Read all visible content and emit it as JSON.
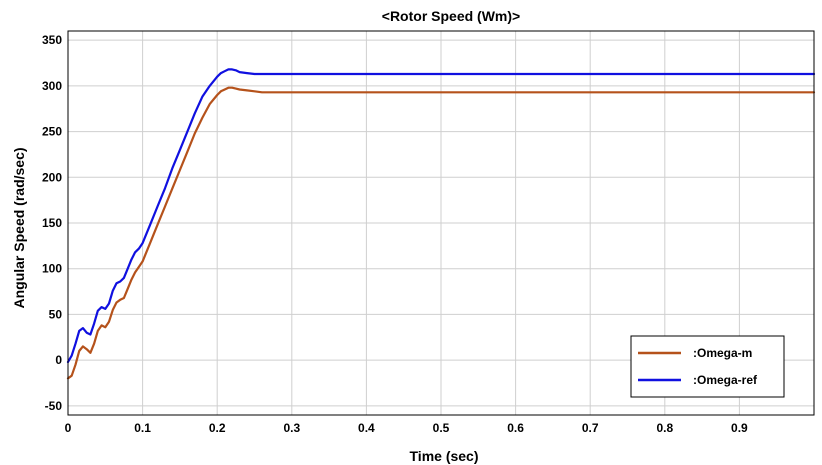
{
  "chart_data": {
    "type": "line",
    "title": "<Rotor Speed (Wm)>",
    "xlabel": "Time (sec)",
    "ylabel": "Angular Speed (rad/sec)",
    "xlim": [
      0,
      1.0
    ],
    "ylim": [
      -60,
      360
    ],
    "xticks": [
      0,
      0.1,
      0.2,
      0.3,
      0.4,
      0.5,
      0.6,
      0.7,
      0.8,
      0.9
    ],
    "xtick_labels": [
      "0",
      "0.1",
      "0.2",
      "0.3",
      "0.4",
      "0.5",
      "0.6",
      "0.7",
      "0.8",
      "0.9"
    ],
    "yticks": [
      -50,
      0,
      50,
      100,
      150,
      200,
      250,
      300,
      350
    ],
    "ytick_labels": [
      "-50",
      "0",
      "50",
      "100",
      "150",
      "200",
      "250",
      "300",
      "350"
    ],
    "grid": true,
    "legend_position": "bottom-right",
    "series": [
      {
        "name": ":Omega-m",
        "color": "#b5521b",
        "x": [
          0,
          0.005,
          0.01,
          0.015,
          0.02,
          0.025,
          0.03,
          0.035,
          0.04,
          0.045,
          0.05,
          0.055,
          0.06,
          0.065,
          0.07,
          0.075,
          0.08,
          0.085,
          0.09,
          0.095,
          0.1,
          0.11,
          0.12,
          0.13,
          0.14,
          0.15,
          0.16,
          0.17,
          0.18,
          0.19,
          0.2,
          0.205,
          0.21,
          0.215,
          0.22,
          0.225,
          0.23,
          0.24,
          0.25,
          0.26,
          0.3,
          0.4,
          0.5,
          0.6,
          0.7,
          0.8,
          0.9,
          1.0
        ],
        "y": [
          -20,
          -17,
          -5,
          10,
          15,
          12,
          8,
          18,
          32,
          38,
          36,
          42,
          55,
          63,
          66,
          68,
          78,
          88,
          96,
          102,
          108,
          128,
          148,
          168,
          188,
          208,
          228,
          248,
          265,
          280,
          290,
          294,
          296,
          298,
          298,
          297,
          296,
          295,
          294,
          293,
          293,
          293,
          293,
          293,
          293,
          293,
          293,
          293
        ]
      },
      {
        "name": ":Omega-ref",
        "color": "#1010e0",
        "x": [
          0,
          0.005,
          0.01,
          0.015,
          0.02,
          0.025,
          0.03,
          0.035,
          0.04,
          0.045,
          0.05,
          0.055,
          0.06,
          0.065,
          0.07,
          0.075,
          0.08,
          0.085,
          0.09,
          0.095,
          0.1,
          0.11,
          0.12,
          0.13,
          0.14,
          0.15,
          0.16,
          0.17,
          0.18,
          0.19,
          0.2,
          0.205,
          0.21,
          0.215,
          0.22,
          0.225,
          0.23,
          0.24,
          0.25,
          0.26,
          0.3,
          0.4,
          0.5,
          0.6,
          0.7,
          0.8,
          0.9,
          1.0
        ],
        "y": [
          -2,
          5,
          18,
          32,
          35,
          30,
          28,
          40,
          54,
          58,
          56,
          62,
          76,
          84,
          86,
          90,
          100,
          110,
          118,
          122,
          128,
          148,
          168,
          188,
          210,
          230,
          250,
          270,
          288,
          300,
          310,
          314,
          316,
          318,
          318,
          317,
          315,
          314,
          313,
          313,
          313,
          313,
          313,
          313,
          313,
          313,
          313,
          313
        ]
      }
    ]
  }
}
